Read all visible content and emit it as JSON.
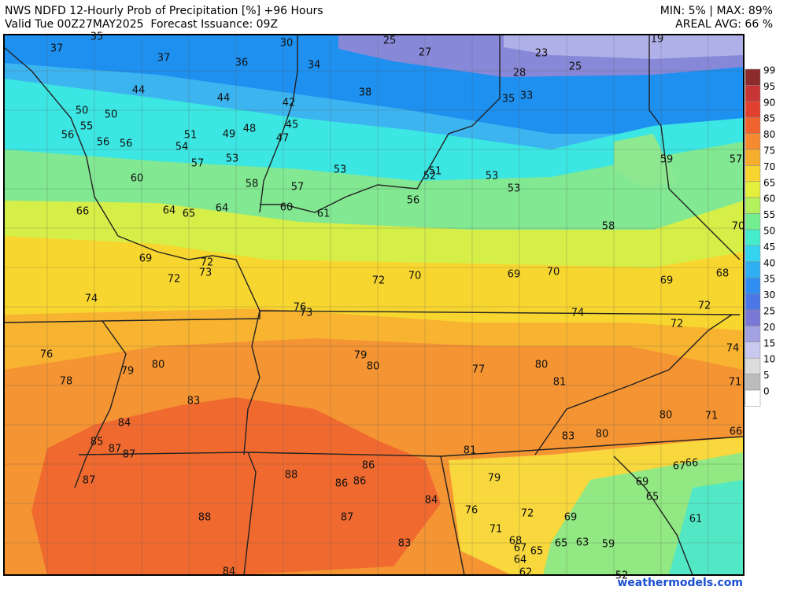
{
  "header": {
    "title": "NWS NDFD 12-Hourly Prob of Precipitation [%] +96 Hours",
    "valid": "Valid Tue 00Z27MAY2025  Forecast Issuance: 09Z",
    "min_max": "MIN: 5% | MAX: 89%",
    "areal_avg": "AREAL AVG: 66 %"
  },
  "map": {
    "labels": [
      35,
      37,
      37,
      36,
      30,
      34,
      25,
      27,
      23,
      25,
      19,
      28,
      35,
      33,
      44,
      44,
      38,
      42,
      50,
      50,
      55,
      56,
      56,
      56,
      51,
      54,
      49,
      48,
      45,
      47,
      57,
      53,
      53,
      51,
      52,
      53,
      53,
      59,
      57,
      60,
      58,
      57,
      60,
      61,
      56,
      66,
      64,
      65,
      64,
      58,
      70,
      69,
      72,
      72,
      73,
      74,
      72,
      70,
      69,
      70,
      69,
      68,
      76,
      73,
      74,
      72,
      72,
      74,
      76,
      79,
      80,
      77,
      80,
      79,
      80,
      78,
      81,
      71,
      83,
      84,
      80,
      71,
      83,
      80,
      66,
      85,
      87,
      87,
      81,
      86,
      66,
      67,
      88,
      86,
      86,
      87,
      79,
      69,
      84,
      65,
      88,
      87,
      76,
      72,
      69,
      61,
      71,
      68,
      83,
      67,
      65,
      65,
      63,
      59,
      64,
      62,
      84,
      52
    ]
  },
  "legend": {
    "values": [
      99,
      95,
      90,
      85,
      80,
      75,
      70,
      65,
      60,
      55,
      50,
      45,
      40,
      35,
      30,
      25,
      20,
      15,
      10,
      5,
      0
    ],
    "colors": [
      "#8b2b2b",
      "#c63434",
      "#e2402e",
      "#f0622e",
      "#f58a30",
      "#f7ae2e",
      "#f8d42e",
      "#e4ee3c",
      "#b2f05c",
      "#72ee8e",
      "#44eccc",
      "#34d4f0",
      "#30aef2",
      "#2f8ef0",
      "#4a76e6",
      "#7a78d6",
      "#a2a2e2",
      "#c8c8f0",
      "#dcdcdc",
      "#bcbcbc",
      "#ffffff"
    ]
  },
  "watermark": "weathermodels.com"
}
